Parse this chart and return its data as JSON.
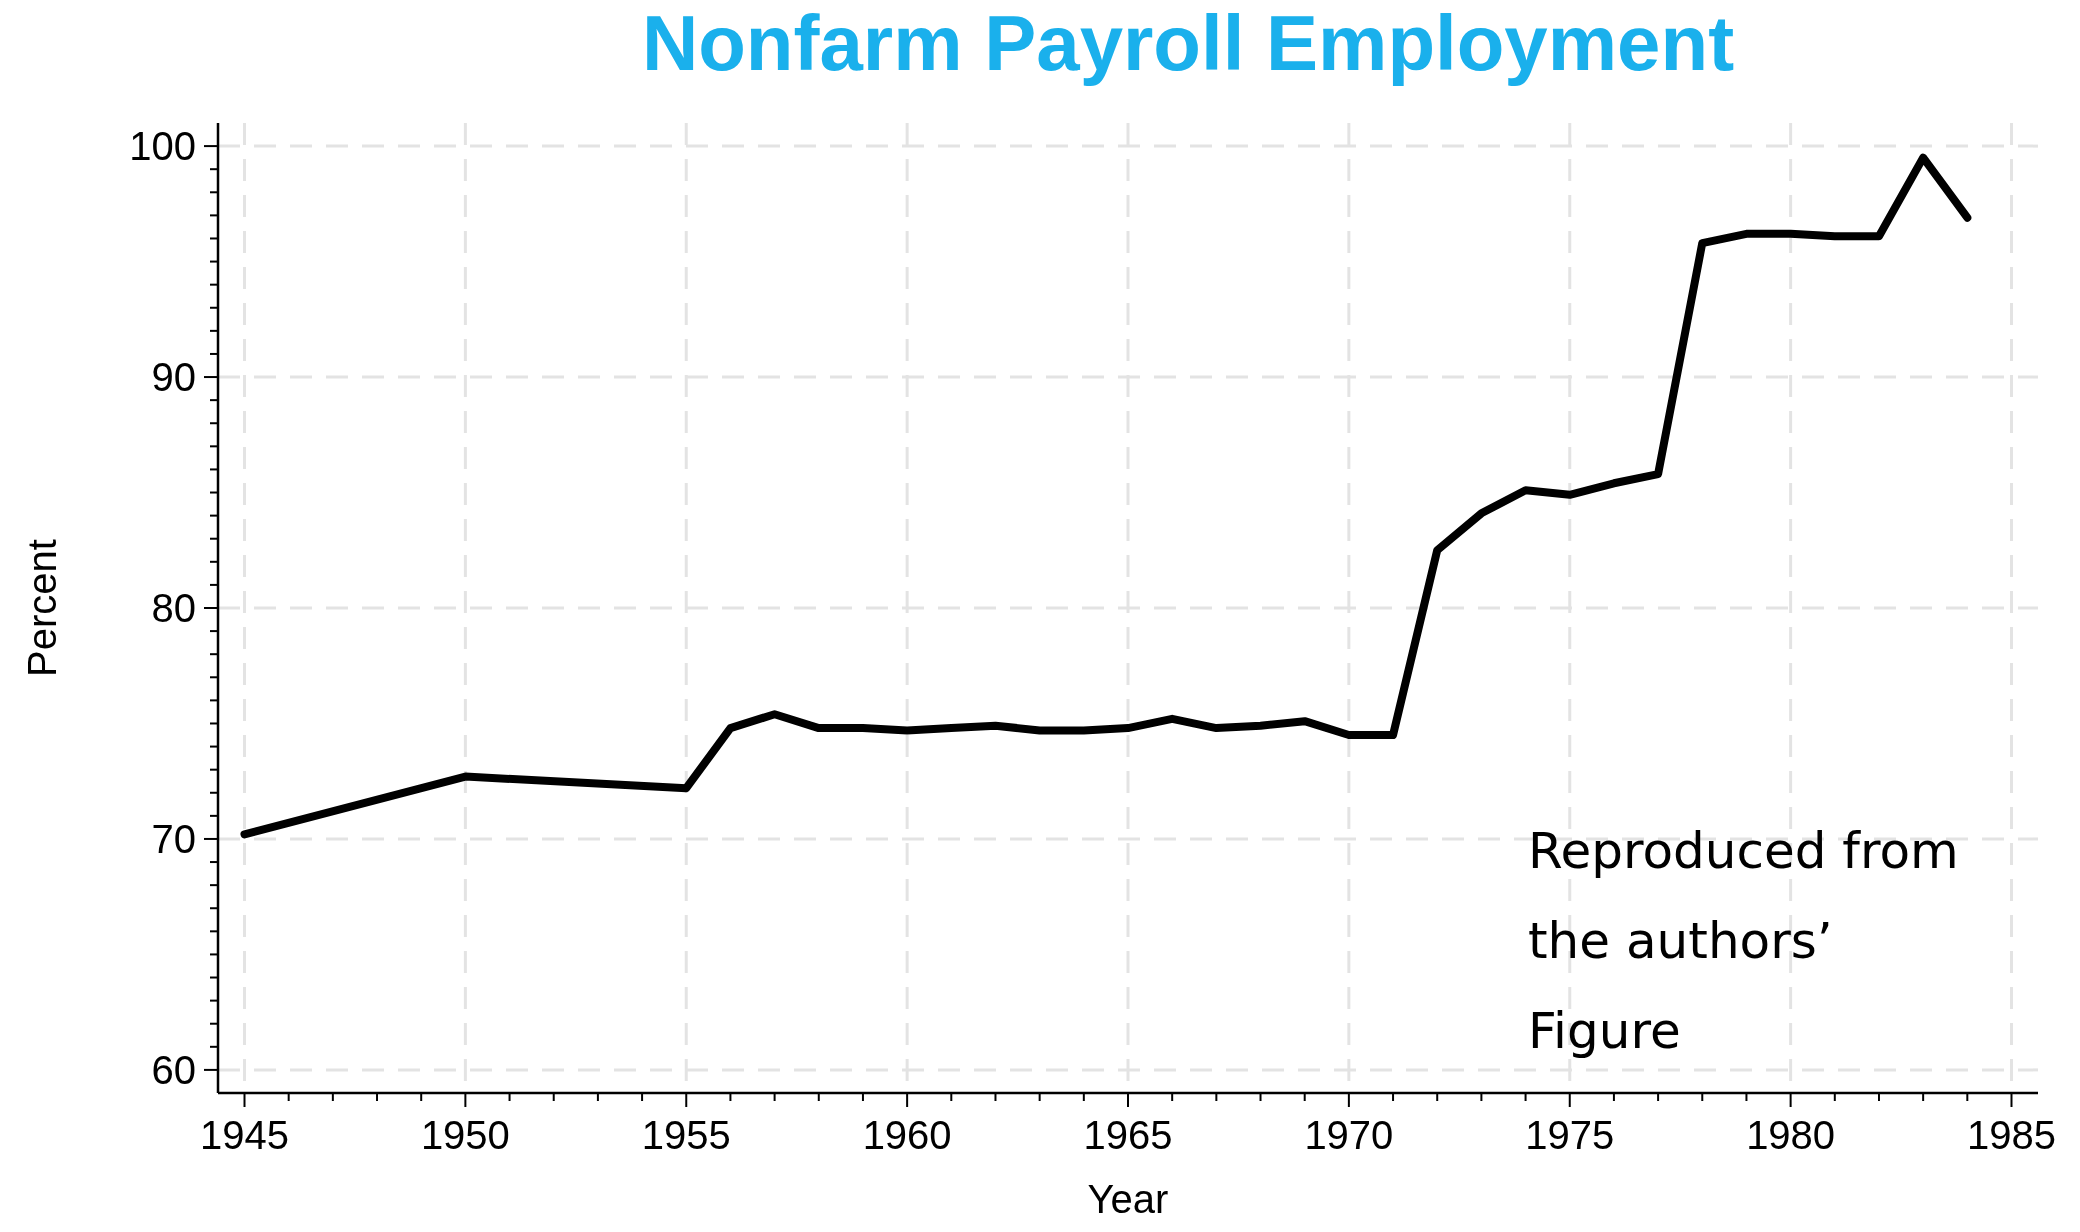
{
  "chart_data": {
    "type": "line",
    "title": "Nonfarm Payroll Employment",
    "xlabel": "Year",
    "ylabel": "Percent",
    "x": [
      1945,
      1950,
      1955,
      1956,
      1957,
      1958,
      1959,
      1960,
      1961,
      1962,
      1963,
      1964,
      1965,
      1966,
      1967,
      1968,
      1969,
      1970,
      1971,
      1972,
      1973,
      1974,
      1975,
      1976,
      1977,
      1978,
      1979,
      1980,
      1981,
      1982,
      1983,
      1984
    ],
    "series": [
      {
        "color": "#000000",
        "values": [
          70.2,
          72.7,
          72.2,
          74.8,
          75.4,
          74.8,
          74.8,
          74.7,
          74.8,
          74.9,
          74.7,
          74.7,
          74.8,
          75.2,
          74.8,
          74.9,
          75.1,
          74.5,
          74.5,
          82.5,
          84.1,
          85.1,
          84.9,
          85.4,
          85.8,
          95.8,
          96.2,
          96.2,
          96.1,
          96.1,
          99.5,
          96.9
        ]
      }
    ],
    "xlim": [
      1944.4,
      1985.6
    ],
    "ylim": [
      59,
      101
    ],
    "xticks": [
      1945,
      {
        "value": 1946,
        "label": null
      },
      {
        "value": 1947,
        "label": null
      },
      {
        "value": 1948,
        "label": null
      },
      {
        "value": 1949,
        "label": null
      },
      1950,
      {
        "value": 1951,
        "label": null
      },
      {
        "value": 1952,
        "label": null
      },
      {
        "value": 1953,
        "label": null
      },
      {
        "value": 1954,
        "label": null
      },
      1955,
      {
        "value": 1956,
        "label": null
      },
      {
        "value": 1957,
        "label": null
      },
      {
        "value": 1958,
        "label": null
      },
      {
        "value": 1959,
        "label": null
      },
      1960,
      {
        "value": 1961,
        "label": null
      },
      {
        "value": 1962,
        "label": null
      },
      {
        "value": 1963,
        "label": null
      },
      {
        "value": 1964,
        "label": null
      },
      1965,
      {
        "value": 1966,
        "label": null
      },
      {
        "value": 1967,
        "label": null
      },
      {
        "value": 1968,
        "label": null
      },
      {
        "value": 1969,
        "label": null
      },
      1970,
      {
        "value": 1971,
        "label": null
      },
      {
        "value": 1972,
        "label": null
      },
      {
        "value": 1973,
        "label": null
      },
      {
        "value": 1974,
        "label": null
      },
      1975,
      {
        "value": 1976,
        "label": null
      },
      {
        "value": 1977,
        "label": null
      },
      {
        "value": 1978,
        "label": null
      },
      {
        "value": 1979,
        "label": null
      },
      1980,
      {
        "value": 1981,
        "label": null
      },
      {
        "value": 1982,
        "label": null
      },
      {
        "value": 1983,
        "label": null
      },
      {
        "value": 1984,
        "label": null
      },
      1985
    ],
    "yticks": [
      60,
      {
        "value": 61,
        "label": null
      },
      {
        "value": 62,
        "label": null
      },
      {
        "value": 63,
        "label": null
      },
      {
        "value": 64,
        "label": null
      },
      {
        "value": 65,
        "label": null
      },
      {
        "value": 66,
        "label": null
      },
      {
        "value": 67,
        "label": null
      },
      {
        "value": 68,
        "label": null
      },
      {
        "value": 69,
        "label": null
      },
      70,
      {
        "value": 71,
        "label": null
      },
      {
        "value": 72,
        "label": null
      },
      {
        "value": 73,
        "label": null
      },
      {
        "value": 74,
        "label": null
      },
      {
        "value": 75,
        "label": null
      },
      {
        "value": 76,
        "label": null
      },
      {
        "value": 77,
        "label": null
      },
      {
        "value": 78,
        "label": null
      },
      {
        "value": 79,
        "label": null
      },
      80,
      {
        "value": 81,
        "label": null
      },
      {
        "value": 82,
        "label": null
      },
      {
        "value": 83,
        "label": null
      },
      {
        "value": 84,
        "label": null
      },
      {
        "value": 85,
        "label": null
      },
      {
        "value": 86,
        "label": null
      },
      {
        "value": 87,
        "label": null
      },
      {
        "value": 88,
        "label": null
      },
      {
        "value": 89,
        "label": null
      },
      90,
      {
        "value": 91,
        "label": null
      },
      {
        "value": 92,
        "label": null
      },
      {
        "value": 93,
        "label": null
      },
      {
        "value": 94,
        "label": null
      },
      {
        "value": 95,
        "label": null
      },
      {
        "value": 96,
        "label": null
      },
      {
        "value": 97,
        "label": null
      },
      {
        "value": 98,
        "label": null
      },
      {
        "value": 99,
        "label": null
      },
      100
    ],
    "grid": true,
    "line_style": "solid",
    "marker": "none",
    "annotations": [
      "Reproduced from the authors’ Figure"
    ]
  }
}
